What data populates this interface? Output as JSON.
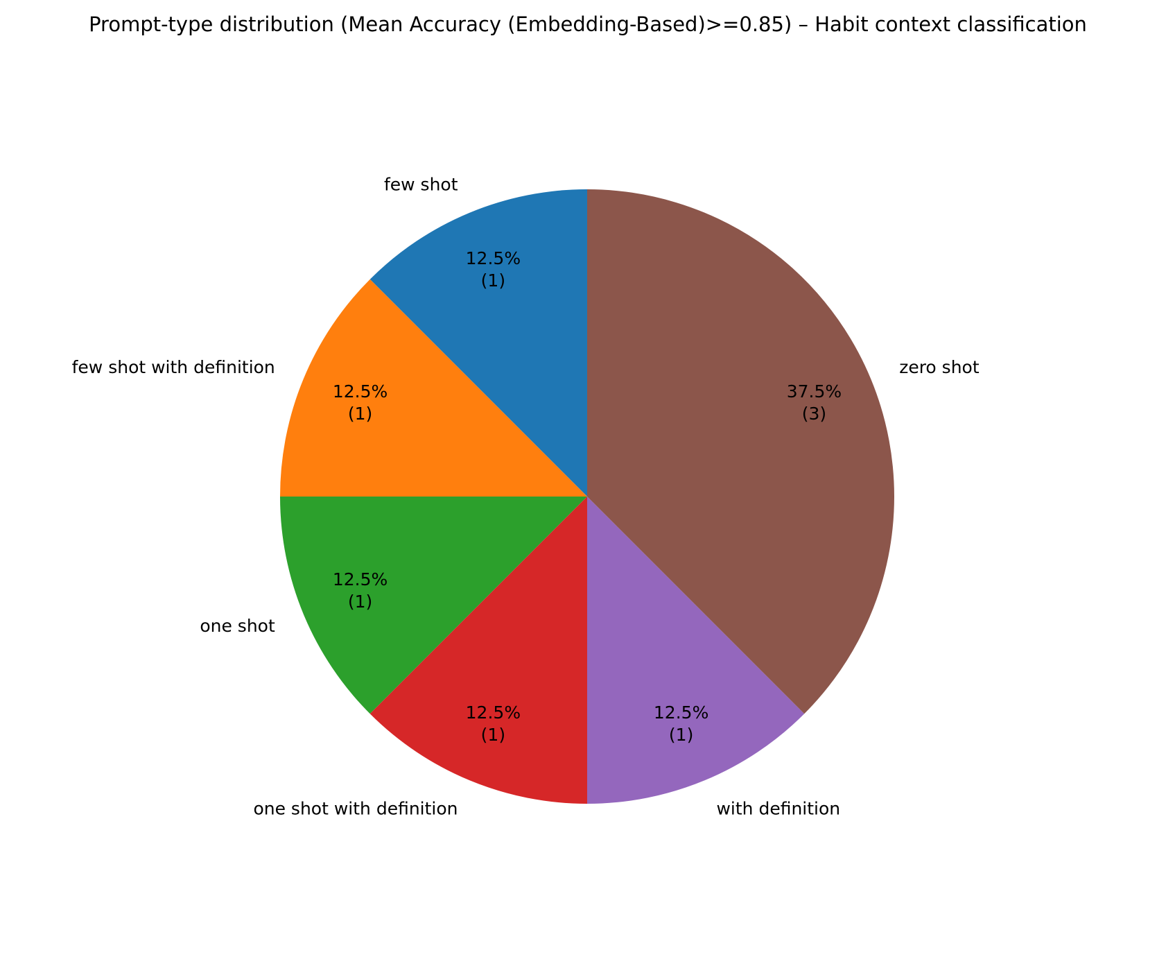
{
  "chart_data": {
    "type": "pie",
    "title": "Prompt-type distribution (Mean Accuracy (Embedding-Based)>=0.85) – Habit context classification",
    "categories": [
      "few shot",
      "few shot with definition",
      "one shot",
      "one shot with definition",
      "with definition",
      "zero shot"
    ],
    "values": [
      1,
      1,
      1,
      1,
      1,
      3
    ],
    "percent_labels": [
      "12.5%",
      "12.5%",
      "12.5%",
      "12.5%",
      "12.5%",
      "37.5%"
    ],
    "count_labels": [
      "(1)",
      "(1)",
      "(1)",
      "(1)",
      "(1)",
      "(3)"
    ],
    "colors": [
      "#1f77b4",
      "#ff7f0e",
      "#2ca02c",
      "#d62728",
      "#9467bd",
      "#8c564b"
    ],
    "start_angle": 90,
    "direction": "counterclockwise",
    "legend": "none"
  }
}
